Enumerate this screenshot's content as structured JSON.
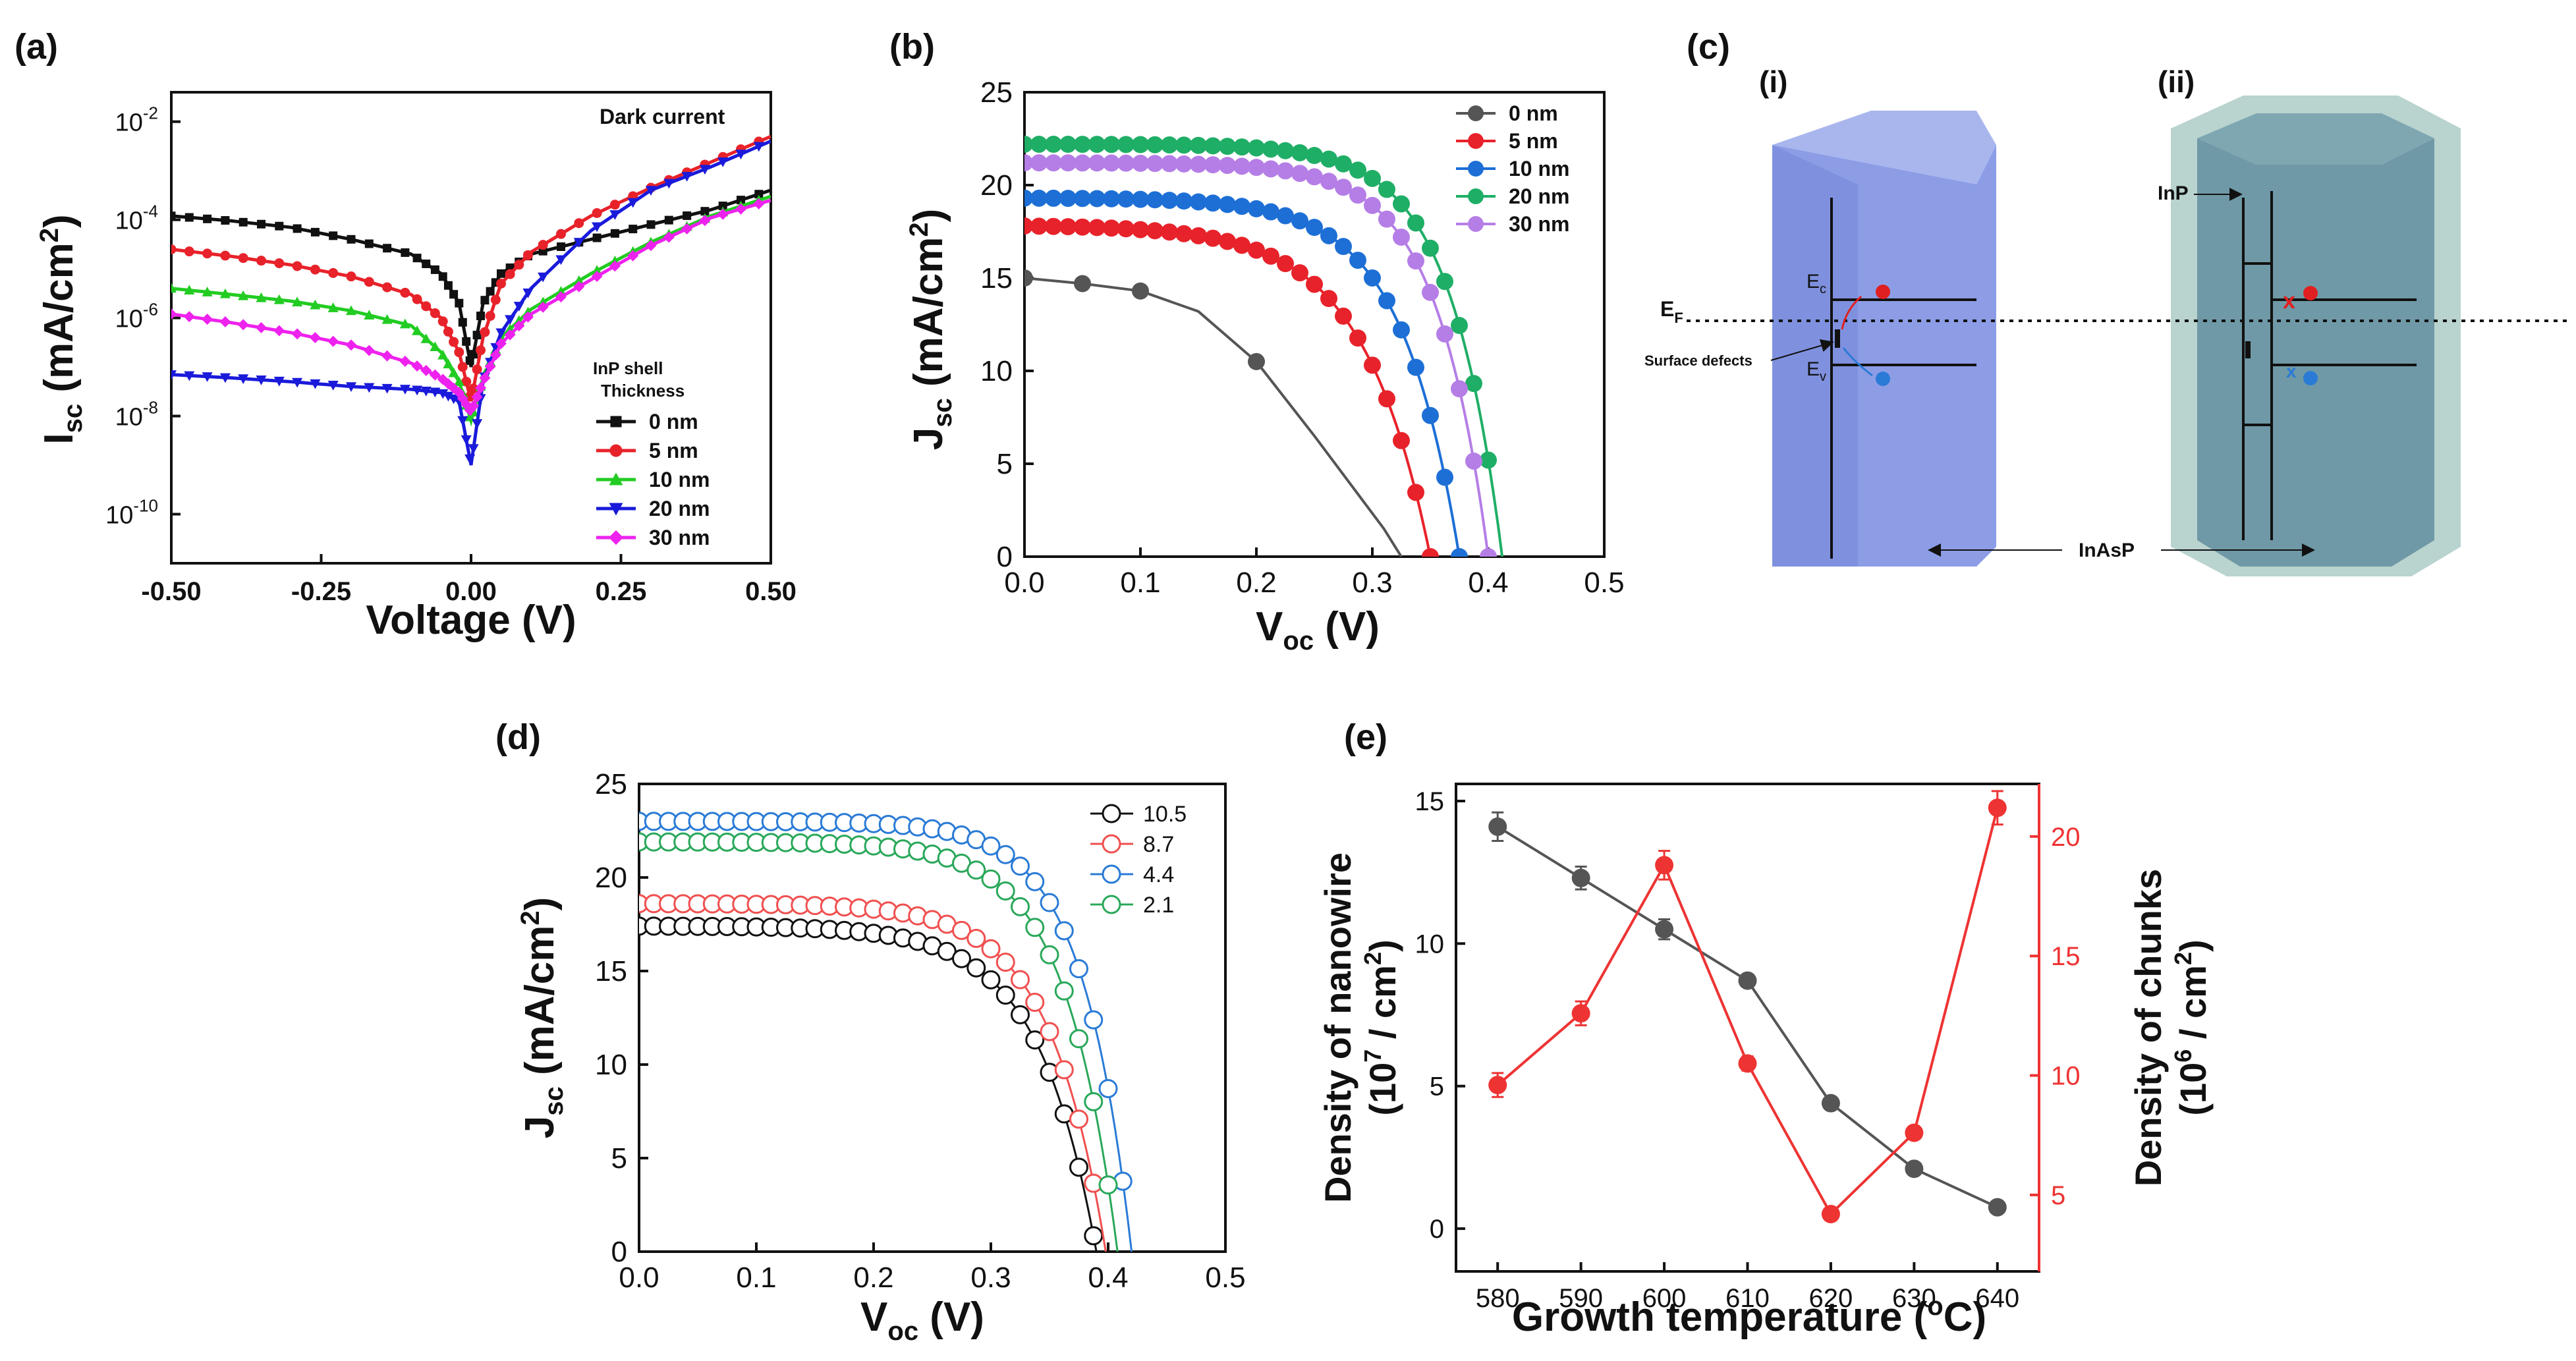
{
  "colors": {
    "black": "#111111",
    "red": "#e8222a",
    "green": "#22cc22",
    "blue": "#1a1adb",
    "magenta": "#ee22ee",
    "grey": "#555555",
    "b_blue": "#1d6fd6",
    "b_green": "#1fae66",
    "b_purple": "#b57ee6",
    "d_red": "#f05050",
    "d_blue": "#2a7bd6",
    "d_green": "#2aa85a",
    "e_red": "#ee3333",
    "cyl_blue": "#8c9de6",
    "cyl_teal": "#6f99a6"
  },
  "chart_data": [
    {
      "id": "a",
      "panel_label": "(a)",
      "type": "line",
      "annotation": "Dark current",
      "xlabel": "Voltage (V)",
      "ylabel": {
        "main": "I",
        "sub": "sc",
        "rest": " (mA/cm",
        "sup": "2",
        "end": ")"
      },
      "xlim": [
        -0.5,
        0.5
      ],
      "ylim_log10": [
        -11,
        -1.4
      ],
      "xticks": [
        "-0.50",
        "-0.25",
        "0.00",
        "0.25",
        "0.50"
      ],
      "yticks": [
        {
          "base": "10",
          "exp": "-2"
        },
        {
          "base": "10",
          "exp": "-4"
        },
        {
          "base": "10",
          "exp": "-6"
        },
        {
          "base": "10",
          "exp": "-8"
        },
        {
          "base": "10",
          "exp": "-10"
        }
      ],
      "ytick_values_log10": [
        -2,
        -4,
        -6,
        -8,
        -10
      ],
      "legend_title": [
        "InP shell",
        "Thickness"
      ],
      "series": [
        {
          "name": "0 nm",
          "color": "black",
          "marker": "square",
          "x": [
            -0.5,
            -0.4,
            -0.3,
            -0.2,
            -0.1,
            -0.05,
            -0.02,
            0,
            0.02,
            0.05,
            0.1,
            0.2,
            0.3,
            0.4,
            0.5
          ],
          "y": [
            0.00012,
            9.5e-05,
            7e-05,
            4e-05,
            2e-05,
            8e-06,
            2e-06,
            1e-07,
            2e-06,
            8e-06,
            2e-05,
            4e-05,
            8e-05,
            0.00016,
            0.0004
          ]
        },
        {
          "name": "5 nm",
          "color": "red",
          "marker": "circle",
          "x": [
            -0.5,
            -0.4,
            -0.3,
            -0.2,
            -0.1,
            -0.05,
            -0.02,
            0,
            0.02,
            0.05,
            0.1,
            0.2,
            0.3,
            0.4,
            0.5
          ],
          "y": [
            2.5e-05,
            1.8e-05,
            1.2e-05,
            7e-06,
            3e-06,
            1e-06,
            2e-07,
            2e-08,
            4e-07,
            5e-06,
            2.2e-05,
            0.00012,
            0.00045,
            0.0015,
            0.005
          ]
        },
        {
          "name": "10 nm",
          "color": "green",
          "marker": "triangle-up",
          "x": [
            -0.5,
            -0.4,
            -0.3,
            -0.2,
            -0.1,
            -0.05,
            -0.02,
            0,
            0.02,
            0.05,
            0.1,
            0.2,
            0.3,
            0.4,
            0.5
          ],
          "y": [
            4e-06,
            3e-06,
            2.2e-06,
            1.4e-06,
            7e-07,
            2e-07,
            5e-08,
            8e-09,
            6e-08,
            4e-07,
            1.5e-06,
            8e-06,
            3.5e-05,
            0.00012,
            0.0003
          ]
        },
        {
          "name": "20 nm",
          "color": "blue",
          "marker": "triangle-down",
          "x": [
            -0.5,
            -0.4,
            -0.3,
            -0.2,
            -0.1,
            -0.05,
            -0.02,
            0,
            0.02,
            0.05,
            0.1,
            0.2,
            0.3,
            0.4,
            0.5
          ],
          "y": [
            7e-08,
            6e-08,
            5e-08,
            4e-08,
            3.5e-08,
            3e-08,
            2e-08,
            1e-09,
            5e-08,
            5e-07,
            4e-06,
            6e-05,
            0.0004,
            0.0012,
            0.004
          ]
        },
        {
          "name": "30 nm",
          "color": "magenta",
          "marker": "diamond",
          "x": [
            -0.5,
            -0.4,
            -0.3,
            -0.2,
            -0.1,
            -0.05,
            -0.02,
            0,
            0.02,
            0.05,
            0.1,
            0.2,
            0.3,
            0.4,
            0.5
          ],
          "y": [
            1.2e-06,
            8e-07,
            5e-07,
            2.8e-07,
            1.2e-07,
            6e-08,
            3e-08,
            1.2e-08,
            5e-08,
            3e-07,
            1.2e-06,
            6e-06,
            3e-05,
            0.00011,
            0.00025
          ]
        }
      ]
    },
    {
      "id": "b",
      "panel_label": "(b)",
      "type": "line",
      "xlabel": {
        "main": "V",
        "sub": "oc",
        "rest": " (V)"
      },
      "ylabel": {
        "main": "J",
        "sub": "sc",
        "rest": " (mA/cm",
        "sup": "2",
        "end": ")"
      },
      "xlim": [
        0,
        0.5
      ],
      "ylim": [
        0,
        25
      ],
      "xticks": [
        "0.0",
        "0.1",
        "0.2",
        "0.3",
        "0.4",
        "0.5"
      ],
      "yticks": [
        "0",
        "5",
        "10",
        "15",
        "20",
        "25"
      ],
      "series": [
        {
          "name": "0 nm",
          "color": "grey",
          "markers": "sparse",
          "x": [
            0,
            0.05,
            0.1,
            0.15,
            0.2,
            0.25,
            0.28,
            0.31,
            0.325
          ],
          "y": [
            15,
            14.7,
            14.3,
            13.2,
            10.5,
            6.5,
            4,
            1.5,
            0
          ]
        },
        {
          "name": "5 nm",
          "color": "red",
          "voc": 0.35,
          "jsc": 17.8,
          "k": 0.058
        },
        {
          "name": "10 nm",
          "color": "b_blue",
          "voc": 0.375,
          "jsc": 19.3,
          "k": 0.05
        },
        {
          "name": "20 nm",
          "color": "b_green",
          "voc": 0.412,
          "jsc": 22.2,
          "k": 0.045
        },
        {
          "name": "30 nm",
          "color": "b_purple",
          "voc": 0.4,
          "jsc": 21.2,
          "k": 0.045
        }
      ]
    },
    {
      "id": "d",
      "panel_label": "(d)",
      "type": "line",
      "xlabel": {
        "main": "V",
        "sub": "oc",
        "rest": " (V)"
      },
      "ylabel": {
        "main": "J",
        "sub": "sc",
        "rest": " (mA/cm",
        "sup": "2",
        "end": ")"
      },
      "xlim": [
        0,
        0.5
      ],
      "ylim": [
        0,
        25
      ],
      "xticks": [
        "0.0",
        "0.1",
        "0.2",
        "0.3",
        "0.4",
        "0.5"
      ],
      "yticks": [
        "0",
        "5",
        "10",
        "15",
        "20",
        "25"
      ],
      "series": [
        {
          "name": "10.5",
          "color": "black",
          "voc": 0.39,
          "jsc": 17.4,
          "k": 0.05
        },
        {
          "name": "8.7",
          "color": "d_red",
          "voc": 0.398,
          "jsc": 18.6,
          "k": 0.048
        },
        {
          "name": "4.4",
          "color": "d_blue",
          "voc": 0.42,
          "jsc": 23,
          "k": 0.042
        },
        {
          "name": "2.1",
          "color": "d_green",
          "voc": 0.408,
          "jsc": 21.9,
          "k": 0.045
        }
      ]
    },
    {
      "id": "e",
      "panel_label": "(e)",
      "type": "line",
      "xlabel": {
        "main": "Growth temperature (",
        "sup": "o",
        "rest": "C)"
      },
      "ylabel_left": {
        "line1": "Density of nanowire",
        "line2a": "(10",
        "sup": "7",
        "line2b": " / cm",
        "sup2": "2",
        "line2c": ")"
      },
      "ylabel_right": {
        "line1": "Density of chunks",
        "line2a": "(10",
        "sup": "6",
        "line2b": " / cm",
        "sup2": "2",
        "line2c": ")"
      },
      "x": [
        580,
        590,
        600,
        610,
        620,
        630,
        640
      ],
      "xticks": [
        "580",
        "590",
        "600",
        "610",
        "620",
        "630",
        "640"
      ],
      "xlim": [
        575,
        645
      ],
      "ylim_left": [
        -1.5,
        15.6
      ],
      "ylim_right": [
        1.8,
        22.2
      ],
      "yticks_left": [
        "0",
        "5",
        "10",
        "15"
      ],
      "yticks_right": [
        "5",
        "10",
        "15",
        "20"
      ],
      "series": [
        {
          "name": "Density of nanowire",
          "axis": "left",
          "color": "grey",
          "y": [
            14.1,
            12.3,
            10.5,
            8.7,
            4.4,
            2.1,
            0.75
          ],
          "err": [
            0.5,
            0.4,
            0.35,
            0.2,
            0.2,
            0.15,
            0.15
          ]
        },
        {
          "name": "Density of chunks",
          "axis": "right",
          "color": "e_red",
          "y": [
            9.6,
            12.6,
            18.8,
            10.5,
            4.2,
            7.6,
            21.2
          ],
          "err": [
            0.5,
            0.5,
            0.6,
            0.3,
            0.2,
            0.2,
            0.7
          ]
        }
      ]
    }
  ],
  "diagram_c": {
    "panel_label": "(c)",
    "sub_i": "(i)",
    "sub_ii": "(ii)",
    "ef": {
      "main": "E",
      "sub": "F"
    },
    "ec": {
      "main": "E",
      "sub": "c"
    },
    "ev": {
      "main": "E",
      "sub": "v"
    },
    "surface_defects": "Surface defects",
    "inp": "InP",
    "inasp": "InAsP",
    "x_mark": "x"
  }
}
